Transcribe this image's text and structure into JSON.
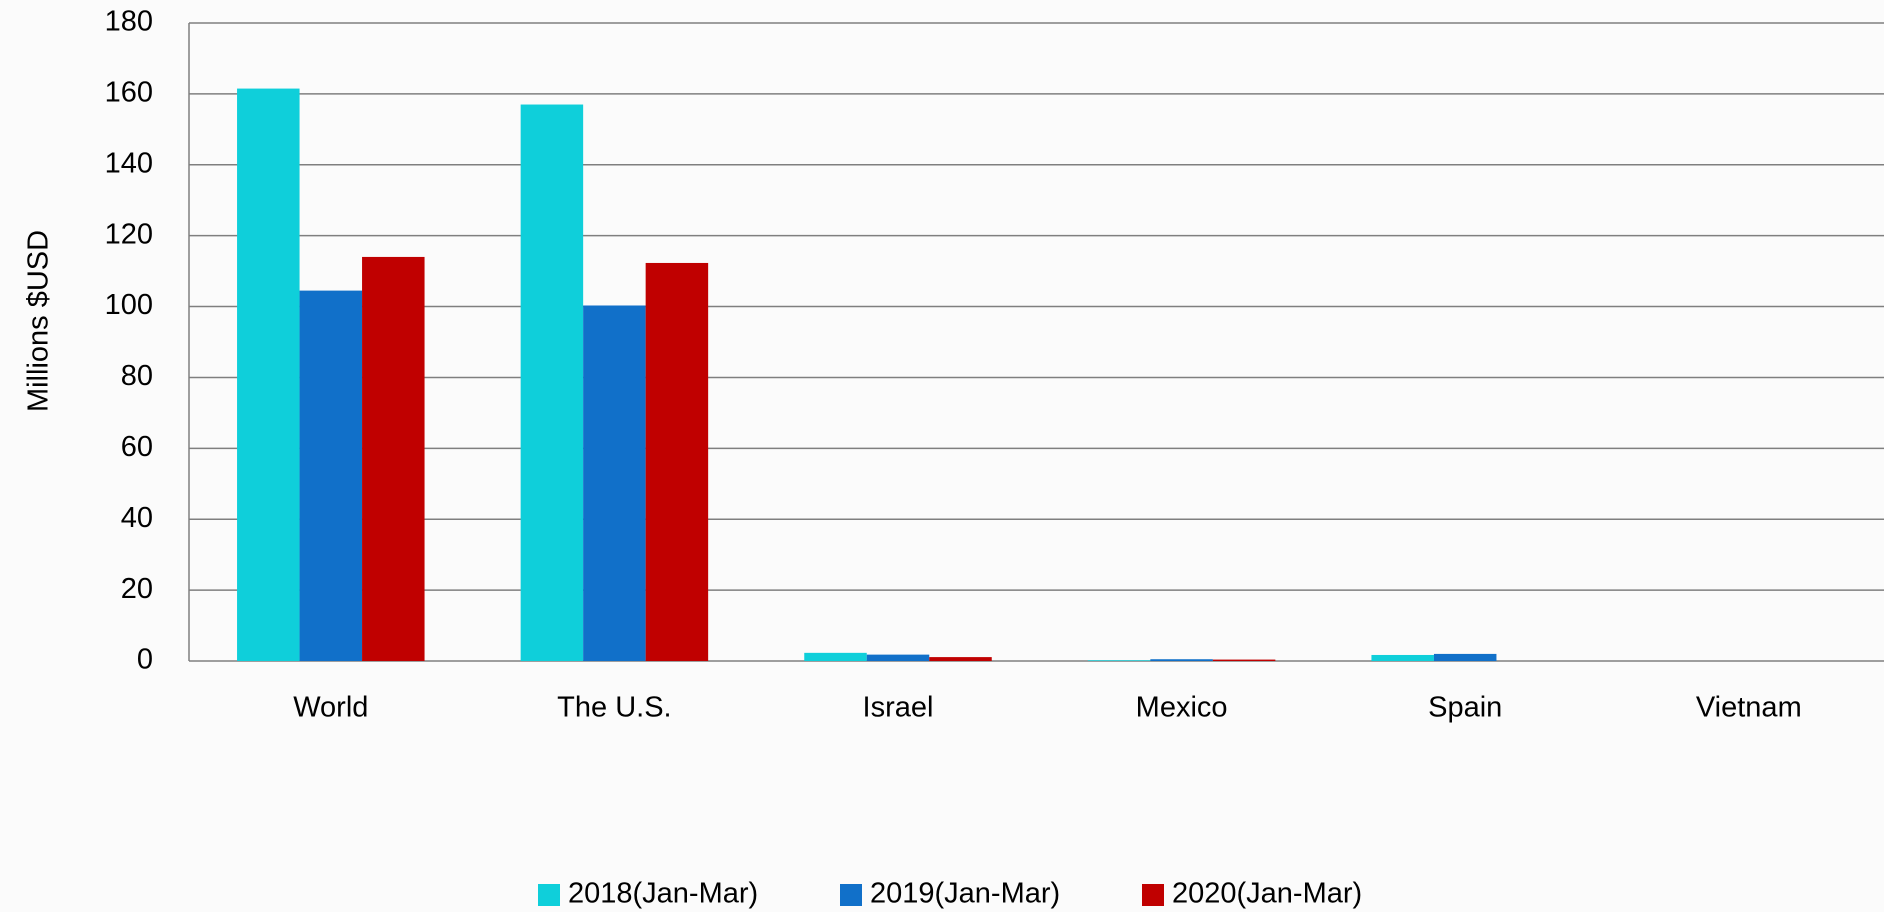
{
  "chart_data": {
    "type": "bar",
    "y_label": "Millions $USD",
    "categories": [
      "World",
      "The U.S.",
      "Israel",
      "Mexico",
      "Spain",
      "Vietnam"
    ],
    "series": [
      {
        "name": "2018(Jan-Mar)",
        "color": "#0fcfda",
        "values": [
          161.5,
          157,
          2.3,
          0.2,
          1.7,
          0
        ]
      },
      {
        "name": "2019(Jan-Mar)",
        "color": "#1170c9",
        "values": [
          104.5,
          100.3,
          1.8,
          0.5,
          2,
          0
        ]
      },
      {
        "name": "2020(Jan-Mar)",
        "color": "#c00000",
        "values": [
          114,
          112.3,
          1.1,
          0.4,
          0,
          0
        ]
      }
    ],
    "ylim": [
      0,
      180
    ],
    "yticks": [
      0,
      20,
      40,
      60,
      80,
      100,
      120,
      140,
      160,
      180
    ],
    "grid": true,
    "legend": "bottom"
  }
}
